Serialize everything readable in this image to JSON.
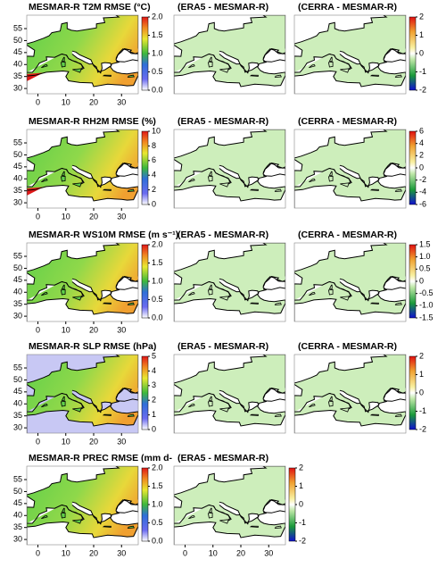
{
  "y_axis_ticks": [
    "55",
    "50",
    "45",
    "40",
    "35",
    "30"
  ],
  "x_axis_ticks": [
    "0",
    "10",
    "20",
    "30"
  ],
  "rows": [
    {
      "panels": [
        {
          "title": "MESMAR-R T2M RMSE (°C)",
          "colorbar": [
            "0.0",
            "0.5",
            "1.0",
            "1.5",
            "2.0"
          ]
        },
        {
          "title": "(ERA5 - MESMAR-R)"
        },
        {
          "title": "(CERRA - MESMAR-R)",
          "colorbar": [
            "-2",
            "-1",
            "0",
            "1",
            "2"
          ]
        }
      ]
    },
    {
      "panels": [
        {
          "title": "MESMAR-R RH2M RMSE (%)",
          "colorbar": [
            "0",
            "2",
            "4",
            "6",
            "8",
            "10"
          ]
        },
        {
          "title": "(ERA5 - MESMAR-R)"
        },
        {
          "title": "(CERRA - MESMAR-R)",
          "colorbar": [
            "-6",
            "-4",
            "-2",
            "0",
            "2",
            "4",
            "6"
          ]
        }
      ]
    },
    {
      "panels": [
        {
          "title": "MESMAR-R WS10M RMSE (m s⁻¹)",
          "colorbar": [
            "0.0",
            "0.5",
            "1.0",
            "1.5",
            "2.0"
          ]
        },
        {
          "title": "(ERA5 - MESMAR-R)"
        },
        {
          "title": "(CERRA - MESMAR-R)",
          "colorbar": [
            "-1.5",
            "-1.0",
            "-0.5",
            "0",
            "0.5",
            "1.0",
            "1.5"
          ]
        }
      ]
    },
    {
      "panels": [
        {
          "title": "MESMAR-R SLP RMSE (hPa)",
          "colorbar": [
            "0",
            "1",
            "2",
            "3",
            "4",
            "5"
          ]
        },
        {
          "title": "(ERA5 - MESMAR-R)"
        },
        {
          "title": "(CERRA - MESMAR-R)",
          "colorbar": [
            "-2",
            "-1",
            "0",
            "1",
            "2"
          ]
        }
      ]
    },
    {
      "panels": [
        {
          "title": "MESMAR-R PREC RMSE (mm d-",
          "colorbar": [
            "0.0",
            "0.5",
            "1.0",
            "1.5",
            "2.0"
          ]
        },
        {
          "title": "(ERA5 - MESMAR-R)",
          "colorbar": [
            "-2",
            "-1",
            "0",
            "1",
            "2"
          ]
        }
      ]
    }
  ]
}
